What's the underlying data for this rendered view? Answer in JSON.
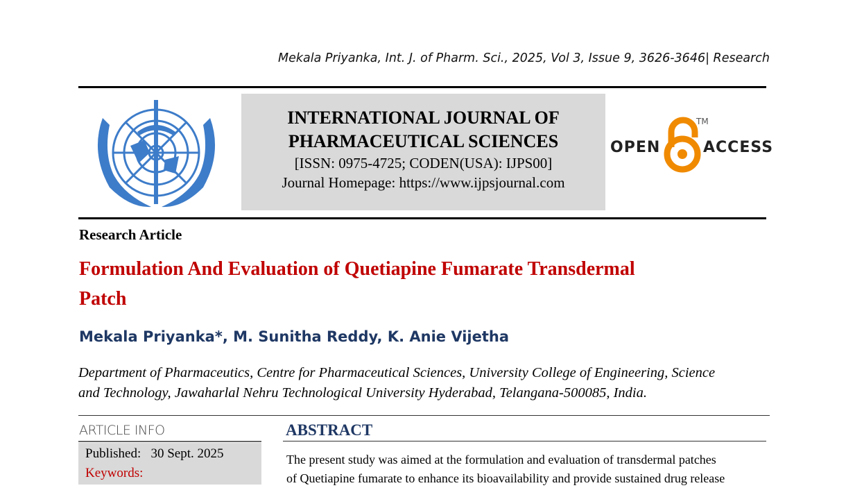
{
  "running_header": "Mekala Priyanka, Int. J. of Pharm. Sci., 2025, Vol 3, Issue 9, 3626-3646| Research",
  "journal": {
    "name_line1": "INTERNATIONAL JOURNAL OF",
    "name_line2": "PHARMACEUTICAL SCIENCES",
    "issn": "[ISSN: 0975-4725; CODEN(USA): IJPS00]",
    "homepage": "Journal Homepage: https://www.ijpsjournal.com"
  },
  "open_access": {
    "open": "OPEN",
    "access": "ACCESS",
    "tm": "TM",
    "color": "#f08a00"
  },
  "article_type": "Research Article",
  "title_line1": "Formulation And Evaluation of Quetiapine Fumarate Transdermal",
  "title_line2": "Patch",
  "authors": "Mekala Priyanka*, M. Sunitha Reddy, K. Anie Vijetha",
  "affiliation_line1": "Department of Pharmaceutics, Centre for Pharmaceutical Sciences, University College of Engineering, Science",
  "affiliation_line2": "and Technology, Jawaharlal Nehru Technological University Hyderabad, Telangana-500085, India.",
  "article_info": {
    "heading": "ARTICLE INFO",
    "published_label": "Published:",
    "published_value": "30 Sept. 2025",
    "keywords_label": "Keywords:"
  },
  "abstract": {
    "heading": "ABSTRACT",
    "line1": "The present study was aimed at the formulation and evaluation of transdermal patches",
    "line2": "of Quetiapine fumarate to enhance its bioavailability and provide sustained drug release"
  },
  "colors": {
    "title": "#c00000",
    "authors": "#1f3864",
    "logo": "#3d7cc9"
  }
}
